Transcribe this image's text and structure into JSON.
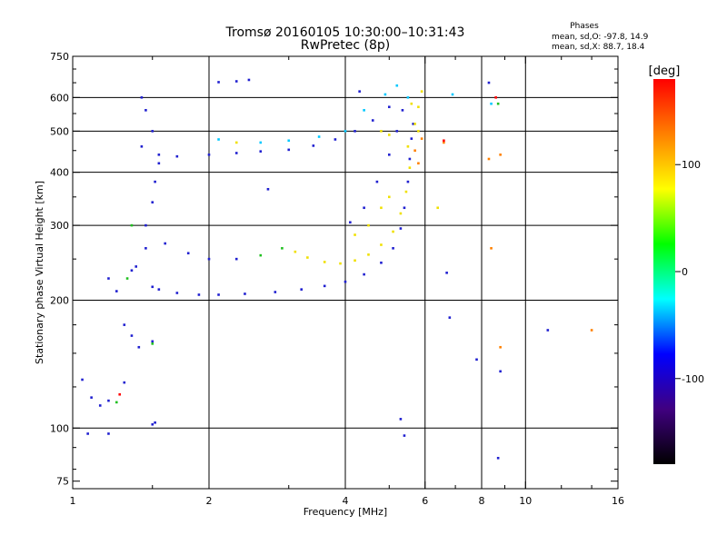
{
  "chart_data": {
    "type": "scatter",
    "title": "Tromsø 20160105 10:30:00–10:31:43",
    "subtitle": "RwPretec (8p)",
    "stats": {
      "heading": "Phases",
      "line_o": "mean, sd,O:  -97.8, 14.9",
      "line_x": "mean, sd,X:   88.7, 18.4"
    },
    "xlabel": "Frequency [MHz]",
    "ylabel": "Stationary phase Virtual Height [km]",
    "x_scale": "log",
    "y_scale": "log",
    "xlim": [
      1,
      16
    ],
    "ylim": [
      72,
      750
    ],
    "x_ticks": [
      1,
      2,
      4,
      6,
      8,
      10,
      16
    ],
    "x_tick_labels": [
      "1",
      "2",
      "4",
      "6",
      "8",
      "10",
      "16"
    ],
    "y_ticks": [
      75,
      100,
      200,
      300,
      400,
      500,
      600,
      750
    ],
    "y_tick_labels": [
      "75",
      "100",
      "200",
      "300",
      "400",
      "500",
      "600",
      "750"
    ],
    "x_minor_ticks": [
      1.5,
      3,
      5,
      7,
      9,
      12,
      14
    ],
    "y_minor_ticks": [
      80,
      90,
      125,
      150,
      175,
      250,
      350,
      450,
      550,
      650,
      700
    ],
    "grid_x": [
      2,
      4,
      6,
      8,
      10
    ],
    "grid_y": [
      100,
      200,
      300,
      400,
      500,
      600
    ],
    "colorbar": {
      "label": "[deg]",
      "range": [
        -180,
        180
      ],
      "ticks": [
        100,
        0,
        -100
      ],
      "tick_labels": [
        "100",
        "0",
        "-100"
      ],
      "colors": [
        "#ff0000",
        "#ff8000",
        "#ffff00",
        "#00ff00",
        "#00ffff",
        "#0000ff",
        "#400080",
        "#000000"
      ]
    },
    "series": [
      {
        "color": "#2020d0",
        "points": [
          [
            1.5,
            215
          ],
          [
            1.55,
            212
          ],
          [
            1.7,
            208
          ],
          [
            1.9,
            206
          ],
          [
            2.1,
            206
          ],
          [
            2.4,
            207
          ],
          [
            2.8,
            209
          ],
          [
            3.2,
            212
          ],
          [
            3.6,
            216
          ],
          [
            4.0,
            221
          ],
          [
            4.4,
            230
          ],
          [
            4.8,
            245
          ],
          [
            5.1,
            265
          ],
          [
            5.3,
            295
          ],
          [
            5.4,
            330
          ],
          [
            5.5,
            380
          ],
          [
            5.55,
            430
          ],
          [
            5.6,
            480
          ],
          [
            5.65,
            520
          ],
          [
            1.38,
            240
          ],
          [
            1.45,
            265
          ],
          [
            1.6,
            272
          ],
          [
            1.8,
            258
          ],
          [
            2.0,
            250
          ],
          [
            2.3,
            250
          ],
          [
            4.1,
            305
          ],
          [
            4.4,
            330
          ],
          [
            4.7,
            380
          ],
          [
            5.0,
            440
          ],
          [
            5.2,
            500
          ],
          [
            5.35,
            560
          ],
          [
            1.42,
            460
          ],
          [
            1.55,
            440
          ],
          [
            1.7,
            436
          ],
          [
            2.0,
            440
          ],
          [
            2.3,
            444
          ],
          [
            2.6,
            448
          ],
          [
            3.0,
            452
          ],
          [
            3.4,
            462
          ],
          [
            3.8,
            478
          ],
          [
            4.2,
            500
          ],
          [
            4.6,
            530
          ],
          [
            5.0,
            570
          ],
          [
            1.45,
            300
          ],
          [
            1.5,
            340
          ],
          [
            1.52,
            380
          ],
          [
            1.55,
            420
          ],
          [
            1.5,
            500
          ],
          [
            1.45,
            560
          ],
          [
            1.42,
            600
          ],
          [
            1.05,
            130
          ],
          [
            1.1,
            118
          ],
          [
            1.15,
            113
          ],
          [
            1.2,
            116
          ],
          [
            1.3,
            128
          ],
          [
            1.4,
            155
          ],
          [
            1.3,
            175
          ],
          [
            1.35,
            165
          ],
          [
            1.5,
            160
          ],
          [
            1.2,
            225
          ],
          [
            1.25,
            210
          ],
          [
            1.35,
            235
          ],
          [
            1.5,
            102
          ],
          [
            1.52,
            103
          ],
          [
            1.08,
            97
          ],
          [
            1.2,
            97
          ],
          [
            2.1,
            652
          ],
          [
            2.3,
            655
          ],
          [
            2.45,
            660
          ],
          [
            2.7,
            365
          ],
          [
            4.3,
            620
          ],
          [
            5.3,
            105
          ],
          [
            5.4,
            96
          ],
          [
            6.7,
            232
          ],
          [
            6.8,
            182
          ],
          [
            8.3,
            650
          ],
          [
            8.8,
            136
          ],
          [
            11.2,
            170
          ],
          [
            7.8,
            145
          ],
          [
            8.7,
            85
          ]
        ]
      },
      {
        "color": "#f0e000",
        "points": [
          [
            3.1,
            260
          ],
          [
            3.3,
            252
          ],
          [
            3.6,
            246
          ],
          [
            3.9,
            244
          ],
          [
            4.2,
            248
          ],
          [
            4.5,
            256
          ],
          [
            4.8,
            270
          ],
          [
            5.1,
            290
          ],
          [
            5.3,
            320
          ],
          [
            5.45,
            360
          ],
          [
            5.55,
            410
          ],
          [
            4.2,
            285
          ],
          [
            4.5,
            300
          ],
          [
            4.8,
            330
          ],
          [
            5.0,
            350
          ],
          [
            5.5,
            460
          ],
          [
            5.7,
            520
          ],
          [
            5.8,
            570
          ],
          [
            5.9,
            620
          ],
          [
            5.6,
            580
          ],
          [
            5.8,
            500
          ],
          [
            4.8,
            500
          ],
          [
            5.0,
            490
          ],
          [
            2.3,
            470
          ],
          [
            6.4,
            330
          ]
        ]
      },
      {
        "color": "#00c8ff",
        "points": [
          [
            2.6,
            470
          ],
          [
            3.0,
            475
          ],
          [
            3.5,
            485
          ],
          [
            4.0,
            500
          ],
          [
            4.4,
            560
          ],
          [
            4.9,
            610
          ],
          [
            5.2,
            640
          ],
          [
            5.5,
            600
          ],
          [
            2.1,
            478
          ],
          [
            8.4,
            580
          ],
          [
            6.9,
            610
          ]
        ]
      },
      {
        "color": "#ff8000",
        "points": [
          [
            5.7,
            450
          ],
          [
            5.8,
            420
          ],
          [
            5.9,
            480
          ],
          [
            8.3,
            430
          ],
          [
            8.8,
            440
          ],
          [
            8.4,
            265
          ],
          [
            8.8,
            155
          ],
          [
            14.0,
            170
          ],
          [
            6.6,
            470
          ]
        ]
      },
      {
        "color": "#20c020",
        "points": [
          [
            1.35,
            300
          ],
          [
            1.5,
            158
          ],
          [
            1.25,
            115
          ],
          [
            1.32,
            225
          ],
          [
            8.7,
            580
          ],
          [
            2.6,
            255
          ],
          [
            2.9,
            265
          ]
        ]
      },
      {
        "color": "#ff0000",
        "points": [
          [
            6.6,
            475
          ],
          [
            8.6,
            600
          ],
          [
            1.27,
            120
          ]
        ]
      }
    ]
  }
}
